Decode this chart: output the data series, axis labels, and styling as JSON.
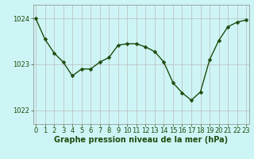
{
  "x": [
    0,
    1,
    2,
    3,
    4,
    5,
    6,
    7,
    8,
    9,
    10,
    11,
    12,
    13,
    14,
    15,
    16,
    17,
    18,
    19,
    20,
    21,
    22,
    23
  ],
  "y": [
    1024.0,
    1023.55,
    1023.25,
    1023.05,
    1022.75,
    1022.9,
    1022.9,
    1023.05,
    1023.15,
    1023.42,
    1023.45,
    1023.45,
    1023.38,
    1023.28,
    1023.05,
    1022.6,
    1022.38,
    1022.22,
    1022.4,
    1023.1,
    1023.52,
    1023.82,
    1023.92,
    1023.97
  ],
  "line_color": "#1e4d0f",
  "marker": "D",
  "marker_size": 2.5,
  "line_width": 1.0,
  "bg_color": "#cef5f5",
  "plot_bg_color": "#cef5f5",
  "grid_color_x": "#bbbbbb",
  "grid_color_y": "#bbbbbb",
  "xlabel": "Graphe pression niveau de la mer (hPa)",
  "xlabel_color": "#1e4d0f",
  "xlabel_fontsize": 7.0,
  "tick_color": "#1e4d0f",
  "tick_fontsize": 6.0,
  "ylim": [
    1021.7,
    1024.3
  ],
  "yticks": [
    1022,
    1023,
    1024
  ],
  "xlim": [
    -0.3,
    23.3
  ],
  "xticks": [
    0,
    1,
    2,
    3,
    4,
    5,
    6,
    7,
    8,
    9,
    10,
    11,
    12,
    13,
    14,
    15,
    16,
    17,
    18,
    19,
    20,
    21,
    22,
    23
  ],
  "spine_color": "#888888"
}
